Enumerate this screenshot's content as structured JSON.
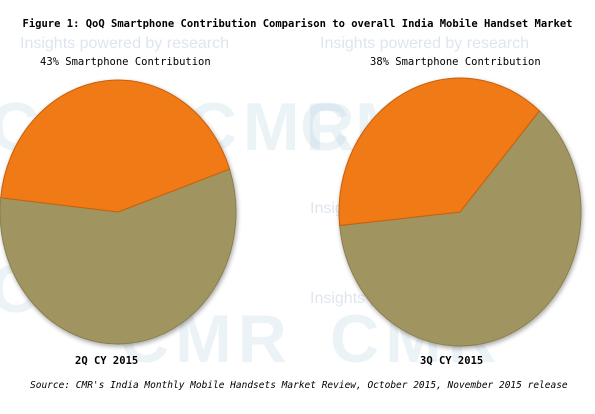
{
  "watermark": {
    "brand": "CMR",
    "tagline": "Insights powered by research"
  },
  "chart_data": {
    "type": "pie",
    "title": "Figure 1: QoQ Smartphone Contribution Comparison to overall India Mobile Handset Market",
    "source": "Source: CMR's India Monthly Mobile Handsets Market Review, October 2015, November 2015 release",
    "colors": {
      "smartphone": "#f07a15",
      "other": "#a09560"
    },
    "pies": [
      {
        "category": "2Q CY 2015",
        "annotation": "43% Smartphone Contribution",
        "smartphone_share": 43,
        "other_share": 57
      },
      {
        "category": "3Q CY 2015",
        "annotation": "38% Smartphone Contribution",
        "smartphone_share": 38,
        "other_share": 62
      }
    ]
  }
}
